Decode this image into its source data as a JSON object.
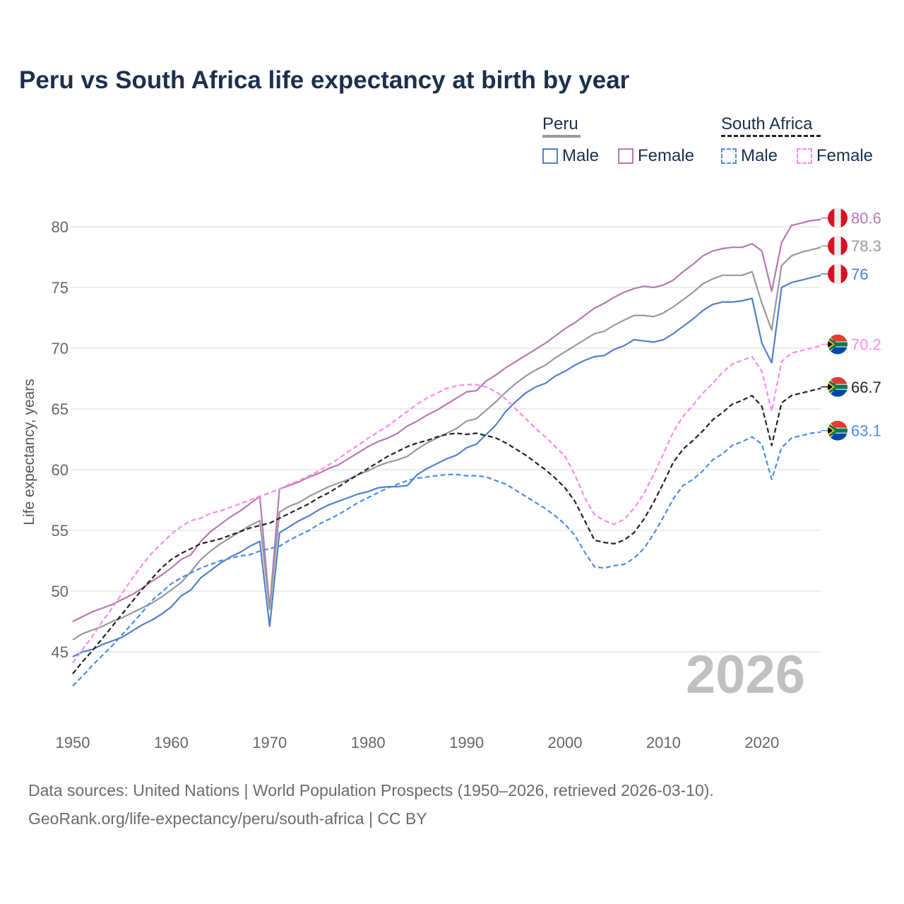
{
  "title": "Peru vs South Africa life expectancy at birth by year",
  "legend": {
    "groups": [
      {
        "name": "Peru",
        "bar_color": "#999999",
        "bar_style": "solid",
        "items": [
          {
            "label": "Male",
            "color": "#5080cc",
            "style": "solid"
          },
          {
            "label": "Female",
            "color": "#b878b4",
            "style": "solid"
          }
        ]
      },
      {
        "name": "South Africa",
        "bar_color": "#222222",
        "bar_style": "dashed",
        "items": [
          {
            "label": "Male",
            "color": "#4a8cf0",
            "style": "dashed"
          },
          {
            "label": "Female",
            "color": "#ff88f0",
            "style": "dashed"
          }
        ]
      }
    ]
  },
  "year_watermark": "2026",
  "footer": [
    "Data sources: United Nations | World Population Prospects (1950–2026, retrieved 2026-03-10).",
    "GeoRank.org/life-expectancy/peru/south-africa | CC BY"
  ],
  "chart_data": {
    "type": "line",
    "title": "Peru vs South Africa life expectancy at birth by year",
    "xlabel": "",
    "ylabel": "Life expectancy, years",
    "xlim": [
      1950,
      2026
    ],
    "ylim": [
      41,
      83
    ],
    "x_start": 1950,
    "x_ticks": [
      1950,
      1960,
      1970,
      1980,
      1990,
      2000,
      2010,
      2020
    ],
    "y_ticks": [
      45,
      50,
      55,
      60,
      65,
      70,
      75,
      80
    ],
    "grid": true,
    "legend_position": "top-right",
    "series": [
      {
        "name": "Peru Female",
        "country": "peru",
        "color": "#b878b4",
        "dash": false,
        "end_label": "80.6",
        "values": [
          47.5,
          47.9,
          48.3,
          48.6,
          48.9,
          49.3,
          49.7,
          50.2,
          50.8,
          51.3,
          51.9,
          52.6,
          53.0,
          54.1,
          54.9,
          55.5,
          56.1,
          56.6,
          57.2,
          57.8,
          48.6,
          58.4,
          58.7,
          59.0,
          59.4,
          59.7,
          60.1,
          60.4,
          60.9,
          61.4,
          61.9,
          62.3,
          62.6,
          63.0,
          63.6,
          64.0,
          64.5,
          64.9,
          65.4,
          65.9,
          66.4,
          66.5,
          67.3,
          67.8,
          68.4,
          68.9,
          69.4,
          69.9,
          70.4,
          71.0,
          71.6,
          72.1,
          72.7,
          73.3,
          73.7,
          74.2,
          74.6,
          74.9,
          75.1,
          75.0,
          75.2,
          75.6,
          76.3,
          76.9,
          77.6,
          78.0,
          78.2,
          78.3,
          78.3,
          78.6,
          78.0,
          74.7,
          78.7,
          80.1,
          80.3,
          80.5,
          80.6
        ]
      },
      {
        "name": "Peru",
        "country": "peru",
        "color": "#999999",
        "dash": false,
        "end_label": "78.3",
        "values": [
          46.0,
          46.5,
          46.8,
          47.1,
          47.5,
          47.8,
          48.2,
          48.6,
          49.0,
          49.5,
          50.1,
          50.7,
          51.6,
          52.6,
          53.3,
          53.9,
          54.4,
          54.9,
          55.4,
          55.8,
          48.5,
          56.5,
          57.0,
          57.3,
          57.8,
          58.2,
          58.6,
          58.9,
          59.2,
          59.6,
          59.9,
          60.3,
          60.6,
          60.8,
          61.1,
          61.7,
          62.2,
          62.6,
          63.0,
          63.4,
          64.0,
          64.2,
          64.9,
          65.6,
          66.4,
          67.1,
          67.7,
          68.2,
          68.6,
          69.2,
          69.7,
          70.2,
          70.7,
          71.2,
          71.4,
          71.9,
          72.3,
          72.7,
          72.7,
          72.6,
          72.9,
          73.4,
          74.0,
          74.6,
          75.3,
          75.7,
          76.0,
          76.0,
          76.0,
          76.3,
          73.7,
          71.5,
          76.8,
          77.6,
          77.9,
          78.1,
          78.3
        ]
      },
      {
        "name": "Peru Male",
        "country": "peru",
        "color": "#5080cc",
        "dash": false,
        "end_label": "76",
        "values": [
          44.6,
          45.0,
          45.2,
          45.6,
          45.9,
          46.2,
          46.7,
          47.2,
          47.6,
          48.1,
          48.7,
          49.6,
          50.1,
          51.1,
          51.7,
          52.3,
          52.8,
          53.2,
          53.7,
          54.1,
          47.1,
          54.8,
          55.3,
          55.8,
          56.2,
          56.7,
          57.1,
          57.4,
          57.7,
          58.0,
          58.2,
          58.5,
          58.6,
          58.6,
          58.7,
          59.6,
          60.1,
          60.5,
          60.9,
          61.2,
          61.8,
          62.1,
          62.9,
          63.7,
          64.8,
          65.6,
          66.3,
          66.8,
          67.1,
          67.7,
          68.1,
          68.6,
          69.0,
          69.3,
          69.4,
          69.9,
          70.2,
          70.7,
          70.6,
          70.5,
          70.7,
          71.2,
          71.8,
          72.4,
          73.1,
          73.6,
          73.8,
          73.8,
          73.9,
          74.1,
          70.4,
          68.8,
          75.0,
          75.4,
          75.6,
          75.8,
          76.0
        ]
      },
      {
        "name": "South Africa Female",
        "country": "south-africa",
        "color": "#ff88f0",
        "dash": true,
        "end_label": "70.2",
        "values": [
          44.1,
          45.2,
          46.3,
          47.5,
          48.6,
          49.8,
          51.0,
          52.1,
          53.1,
          53.9,
          54.7,
          55.3,
          55.8,
          56.0,
          56.4,
          56.6,
          56.9,
          57.2,
          57.5,
          57.8,
          58.1,
          58.4,
          58.8,
          59.1,
          59.5,
          59.9,
          60.4,
          60.9,
          61.5,
          62.0,
          62.6,
          63.1,
          63.6,
          64.2,
          64.8,
          65.4,
          65.9,
          66.3,
          66.7,
          66.9,
          67.0,
          67.0,
          66.8,
          66.4,
          65.8,
          65.0,
          64.2,
          63.4,
          62.7,
          61.9,
          61.1,
          59.6,
          57.7,
          56.3,
          55.8,
          55.5,
          55.9,
          56.8,
          58.0,
          59.6,
          61.3,
          63.1,
          64.4,
          65.3,
          66.3,
          67.1,
          68.0,
          68.7,
          69.0,
          69.3,
          68.1,
          64.8,
          68.9,
          69.6,
          69.8,
          70.0,
          70.2
        ]
      },
      {
        "name": "South Africa",
        "country": "south-africa",
        "color": "#222222",
        "dash": true,
        "end_label": "66.7",
        "values": [
          43.2,
          44.2,
          45.1,
          46.1,
          47.1,
          48.1,
          49.1,
          50.1,
          51.0,
          51.9,
          52.6,
          53.1,
          53.5,
          53.9,
          54.1,
          54.3,
          54.6,
          54.9,
          55.2,
          55.4,
          55.6,
          56.0,
          56.4,
          56.8,
          57.2,
          57.7,
          58.1,
          58.6,
          59.1,
          59.6,
          60.1,
          60.6,
          61.1,
          61.5,
          61.9,
          62.2,
          62.4,
          62.7,
          62.9,
          63.0,
          62.9,
          63.0,
          62.8,
          62.6,
          62.2,
          61.7,
          61.2,
          60.6,
          60.0,
          59.3,
          58.5,
          57.4,
          55.8,
          54.2,
          54.0,
          53.9,
          54.2,
          54.8,
          55.9,
          57.3,
          58.9,
          60.6,
          61.7,
          62.4,
          63.2,
          64.1,
          64.7,
          65.4,
          65.7,
          66.1,
          65.2,
          62.0,
          65.5,
          66.1,
          66.3,
          66.5,
          66.7
        ]
      },
      {
        "name": "South Africa Male",
        "country": "south-africa",
        "color": "#4a8cf0",
        "dash": true,
        "end_label": "63.1",
        "values": [
          42.2,
          43.0,
          43.9,
          44.7,
          45.5,
          46.4,
          47.3,
          48.2,
          49.2,
          49.9,
          50.6,
          51.1,
          51.5,
          51.9,
          52.2,
          52.5,
          52.7,
          52.9,
          53.0,
          53.3,
          53.5,
          53.7,
          54.2,
          54.6,
          55.0,
          55.5,
          55.9,
          56.3,
          56.8,
          57.3,
          57.7,
          58.1,
          58.5,
          58.8,
          59.1,
          59.3,
          59.4,
          59.5,
          59.6,
          59.6,
          59.5,
          59.5,
          59.4,
          59.1,
          58.8,
          58.3,
          57.8,
          57.3,
          56.8,
          56.2,
          55.5,
          54.6,
          53.2,
          52.0,
          51.9,
          52.1,
          52.2,
          52.7,
          53.5,
          54.7,
          56.1,
          57.6,
          58.7,
          59.2,
          59.9,
          60.8,
          61.3,
          62.0,
          62.3,
          62.7,
          62.1,
          59.2,
          61.8,
          62.6,
          62.8,
          63.0,
          63.1
        ]
      }
    ]
  }
}
